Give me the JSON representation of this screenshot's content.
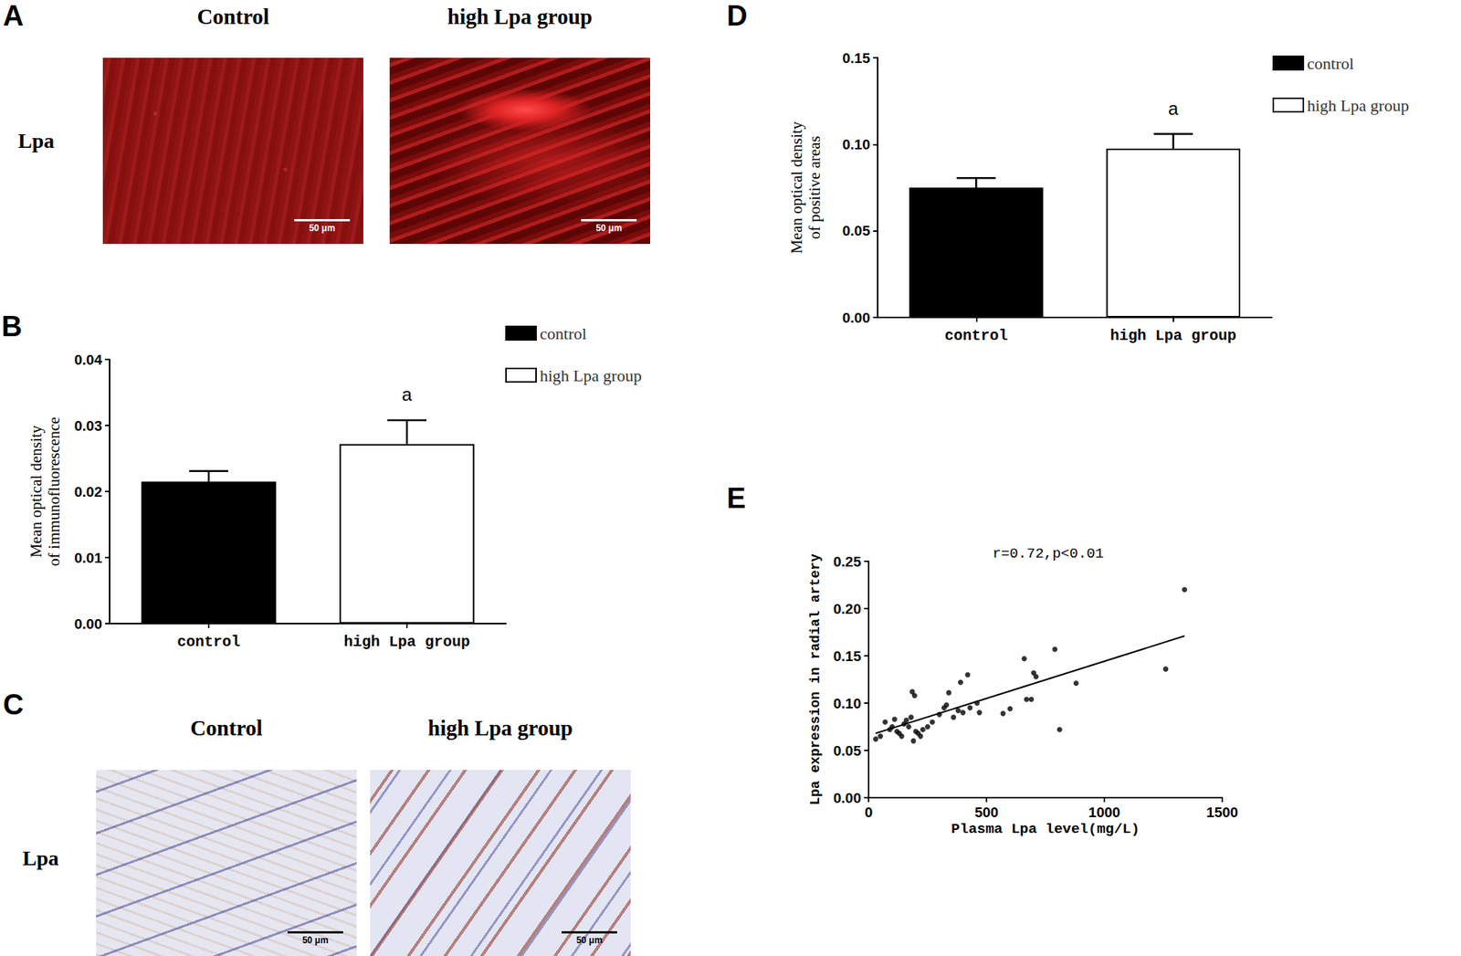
{
  "panels": [
    {
      "panel": "A",
      "row_label": "Lpa",
      "style": "immunofluorescence",
      "columns": [
        {
          "title": "Control",
          "scale_bar": "50 μm"
        },
        {
          "title": "high Lpa group",
          "scale_bar": "50 μm"
        }
      ]
    },
    {
      "panel": "C",
      "row_label": "Lpa",
      "style": "immunohistochemistry",
      "columns": [
        {
          "title": "Control",
          "scale_bar": "50 μm"
        },
        {
          "title": "high Lpa group",
          "scale_bar": "50 μm"
        }
      ]
    }
  ],
  "chart_data": [
    {
      "panel": "B",
      "type": "bar",
      "y_label": "Mean optical density\nof immunofluorescence",
      "categories": [
        "control",
        "high Lpa group"
      ],
      "series": [
        {
          "name": "control",
          "color": "#000000",
          "values": [
            0.0215,
            null
          ],
          "errors": [
            0.0016,
            null
          ]
        },
        {
          "name": "high Lpa group",
          "color": "#ffffff",
          "values": [
            null,
            0.0272
          ],
          "errors": [
            null,
            0.0036
          ]
        }
      ],
      "annotations": [
        {
          "category": "high Lpa group",
          "text": "a"
        }
      ],
      "ylim": [
        0,
        0.04
      ],
      "yticks": [
        {
          "value": 0,
          "label": "0.00"
        },
        {
          "value": 0.01,
          "label": "0.01"
        },
        {
          "value": 0.02,
          "label": "0.02"
        },
        {
          "value": 0.03,
          "label": "0.03"
        },
        {
          "value": 0.04,
          "label": "0.04"
        }
      ],
      "grid": false,
      "legend": "upper right"
    },
    {
      "panel": "D",
      "type": "bar",
      "y_label": "Mean optical density\nof positive areas",
      "categories": [
        "control",
        "high Lpa group"
      ],
      "series": [
        {
          "name": "control",
          "color": "#000000",
          "values": [
            0.075,
            null
          ],
          "errors": [
            0.0055,
            null
          ]
        },
        {
          "name": "high Lpa group",
          "color": "#ffffff",
          "values": [
            null,
            0.0975
          ],
          "errors": [
            null,
            0.0085
          ]
        }
      ],
      "annotations": [
        {
          "category": "high Lpa group",
          "text": "a"
        }
      ],
      "ylim": [
        0,
        0.15
      ],
      "yticks": [
        {
          "value": 0,
          "label": "0.00"
        },
        {
          "value": 0.05,
          "label": "0.05"
        },
        {
          "value": 0.1,
          "label": "0.10"
        },
        {
          "value": 0.15,
          "label": "0.15"
        }
      ],
      "grid": false,
      "legend": "upper right"
    },
    {
      "panel": "E",
      "type": "scatter",
      "x_label": "Plasma Lpa level(mg/L)",
      "y_label": "Lpa expression in radial artery",
      "annotation": "r=0.72,p<0.01",
      "color": "#000000",
      "marker": "circle",
      "x": [
        30,
        50,
        70,
        90,
        100,
        110,
        120,
        130,
        140,
        150,
        160,
        170,
        180,
        185,
        190,
        195,
        200,
        210,
        220,
        230,
        250,
        270,
        300,
        320,
        330,
        340,
        360,
        380,
        390,
        400,
        420,
        430,
        460,
        470,
        570,
        600,
        660,
        670,
        690,
        700,
        710,
        790,
        810,
        880,
        1260,
        1340
      ],
      "values": [
        0.062,
        0.065,
        0.08,
        0.072,
        0.075,
        0.083,
        0.07,
        0.068,
        0.065,
        0.078,
        0.082,
        0.075,
        0.085,
        0.112,
        0.06,
        0.108,
        0.07,
        0.068,
        0.065,
        0.072,
        0.075,
        0.08,
        0.088,
        0.095,
        0.098,
        0.111,
        0.085,
        0.092,
        0.122,
        0.09,
        0.13,
        0.095,
        0.1,
        0.09,
        0.089,
        0.094,
        0.147,
        0.104,
        0.104,
        0.132,
        0.128,
        0.157,
        0.072,
        0.121,
        0.136,
        0.22
      ],
      "trend_line": {
        "x": [
          30,
          1340
        ],
        "values": [
          0.068,
          0.171
        ]
      },
      "xlim": [
        0,
        1500
      ],
      "xticks": [
        0,
        500,
        1000,
        1500
      ],
      "ylim": [
        0,
        0.25
      ],
      "yticks": [
        {
          "value": 0,
          "label": "0.00"
        },
        {
          "value": 0.05,
          "label": "0.05"
        },
        {
          "value": 0.1,
          "label": "0.10"
        },
        {
          "value": 0.15,
          "label": "0.15"
        },
        {
          "value": 0.2,
          "label": "0.20"
        },
        {
          "value": 0.25,
          "label": "0.25"
        }
      ],
      "grid": false
    }
  ]
}
